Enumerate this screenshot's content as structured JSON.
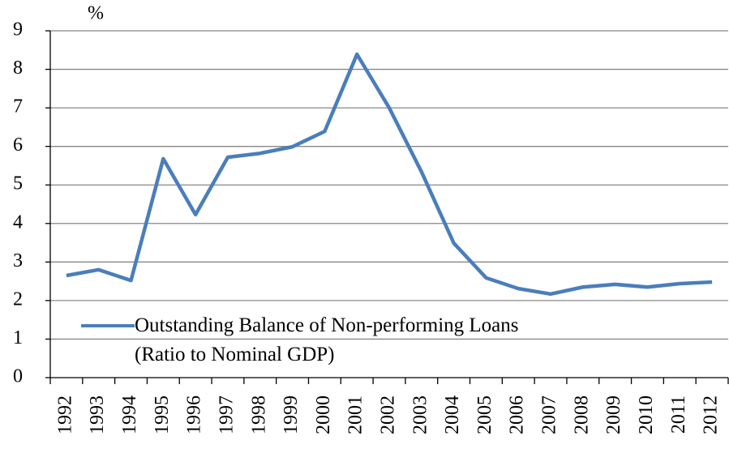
{
  "chart_data": {
    "type": "line",
    "y_unit": "%",
    "categories": [
      "1992",
      "1993",
      "1994",
      "1995",
      "1996",
      "1997",
      "1998",
      "1999",
      "2000",
      "2001",
      "2002",
      "2003",
      "2004",
      "2005",
      "2006",
      "2007",
      "2008",
      "2009",
      "2010",
      "2011",
      "2012"
    ],
    "series": [
      {
        "name": "Outstanding Balance of Non-performing Loans\n(Ratio to Nominal GDP)",
        "color": "#4a7ebb",
        "values": [
          2.65,
          2.8,
          2.52,
          5.68,
          4.23,
          5.72,
          5.82,
          5.99,
          6.39,
          8.39,
          7.0,
          5.34,
          3.49,
          2.59,
          2.31,
          2.17,
          2.35,
          2.42,
          2.35,
          2.44,
          2.48
        ]
      }
    ],
    "ylim": [
      0,
      9
    ],
    "yticks": [
      0,
      1,
      2,
      3,
      4,
      5,
      6,
      7,
      8,
      9
    ],
    "grid": true
  }
}
